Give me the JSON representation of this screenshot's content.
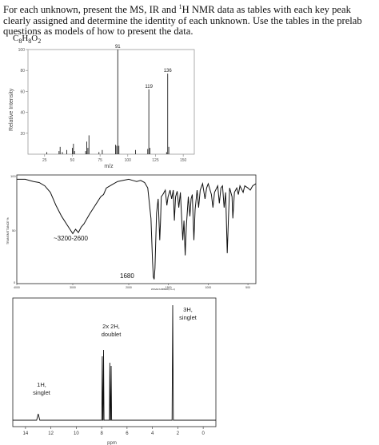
{
  "instructions": {
    "part1": "For each unknown, present the MS, IR and ",
    "sup": "1",
    "part2": "H NMR data as tables with each key peak clearly assigned and determine the identity of each unknown. Use the tables in the prelab questions as models of how to present the data."
  },
  "formula": {
    "c": "C",
    "c_n": "8",
    "h": "H",
    "h_n": "8",
    "o": "O",
    "o_n": "2"
  },
  "ms": {
    "ylabel": "Relative Intensity",
    "xlabel": "m/z",
    "yticks": [
      "100",
      "80",
      "60",
      "40",
      "20"
    ],
    "xticks": [
      "25",
      "50",
      "75",
      "100",
      "125",
      "150"
    ],
    "xlim": [
      10,
      160
    ],
    "ylim": [
      0,
      100
    ],
    "peaks": [
      {
        "mz": 27,
        "rel": 2
      },
      {
        "mz": 38,
        "rel": 3
      },
      {
        "mz": 39,
        "rel": 7
      },
      {
        "mz": 41,
        "rel": 2
      },
      {
        "mz": 45,
        "rel": 4
      },
      {
        "mz": 50,
        "rel": 6
      },
      {
        "mz": 51,
        "rel": 10
      },
      {
        "mz": 52,
        "rel": 3
      },
      {
        "mz": 62,
        "rel": 3
      },
      {
        "mz": 63,
        "rel": 12
      },
      {
        "mz": 64,
        "rel": 6
      },
      {
        "mz": 65,
        "rel": 18
      },
      {
        "mz": 74,
        "rel": 2
      },
      {
        "mz": 77,
        "rel": 4
      },
      {
        "mz": 89,
        "rel": 9
      },
      {
        "mz": 90,
        "rel": 8
      },
      {
        "mz": 91,
        "rel": 100
      },
      {
        "mz": 92,
        "rel": 8
      },
      {
        "mz": 107,
        "rel": 4
      },
      {
        "mz": 118,
        "rel": 5
      },
      {
        "mz": 119,
        "rel": 62
      },
      {
        "mz": 120,
        "rel": 6
      },
      {
        "mz": 135,
        "rel": 2
      },
      {
        "mz": 136,
        "rel": 77
      },
      {
        "mz": 137,
        "rel": 7
      }
    ],
    "labels": [
      {
        "text": "91",
        "mz": 91,
        "rel": 100
      },
      {
        "text": "136",
        "mz": 136,
        "rel": 77
      },
      {
        "text": "119",
        "mz": 119,
        "rel": 62
      }
    ]
  },
  "ir": {
    "ylabel": "TRANSMITTANCE %",
    "xlabel": "WAVENUMBER(cm-1)",
    "ytick_top": "100",
    "ytick_mid": "50",
    "ytick_bottom": "0",
    "xticks": [
      "4000",
      "3000",
      "2000",
      "1500",
      "1000",
      "500"
    ],
    "annotations": [
      "~3200-2600",
      "1680"
    ]
  },
  "nmr": {
    "xlabel": "ppm",
    "xticks": [
      "14",
      "12",
      "10",
      "8",
      "6",
      "4",
      "2",
      "0"
    ],
    "xlim": [
      15,
      -1
    ],
    "peak_labels": [
      {
        "line1": "1H,",
        "line2": "singlet",
        "ppm": 13.0
      },
      {
        "line1": "2x 2H,",
        "line2": "doublet",
        "ppm": 7.6
      },
      {
        "line1": "3H,",
        "line2": "singlet",
        "ppm": 2.4
      }
    ]
  },
  "chart_data": [
    {
      "type": "bar",
      "title": "",
      "xlabel": "m/z",
      "ylabel": "Relative Intensity",
      "xlim": [
        10,
        160
      ],
      "ylim": [
        0,
        100
      ],
      "x": [
        27,
        38,
        39,
        41,
        45,
        50,
        51,
        52,
        62,
        63,
        64,
        65,
        74,
        77,
        89,
        90,
        91,
        92,
        107,
        118,
        119,
        120,
        135,
        136,
        137
      ],
      "values": [
        2,
        3,
        7,
        2,
        4,
        6,
        10,
        3,
        3,
        12,
        6,
        18,
        2,
        4,
        9,
        8,
        100,
        8,
        4,
        5,
        62,
        6,
        2,
        77,
        7
      ]
    },
    {
      "type": "line",
      "title": "",
      "xlabel": "WAVENUMBER(cm-1)",
      "ylabel": "TRANSMITTANCE %",
      "xlim": [
        4000,
        400
      ],
      "ylim": [
        0,
        100
      ],
      "annotations": [
        "~3200-2600",
        "1680"
      ]
    },
    {
      "type": "line",
      "title": "",
      "xlabel": "ppm",
      "xlim": [
        15,
        -1
      ],
      "annotations": [
        "1H, singlet",
        "2x 2H, doublet",
        "3H, singlet"
      ],
      "peaks_ppm": [
        13.0,
        7.9,
        7.3,
        2.4
      ]
    }
  ]
}
